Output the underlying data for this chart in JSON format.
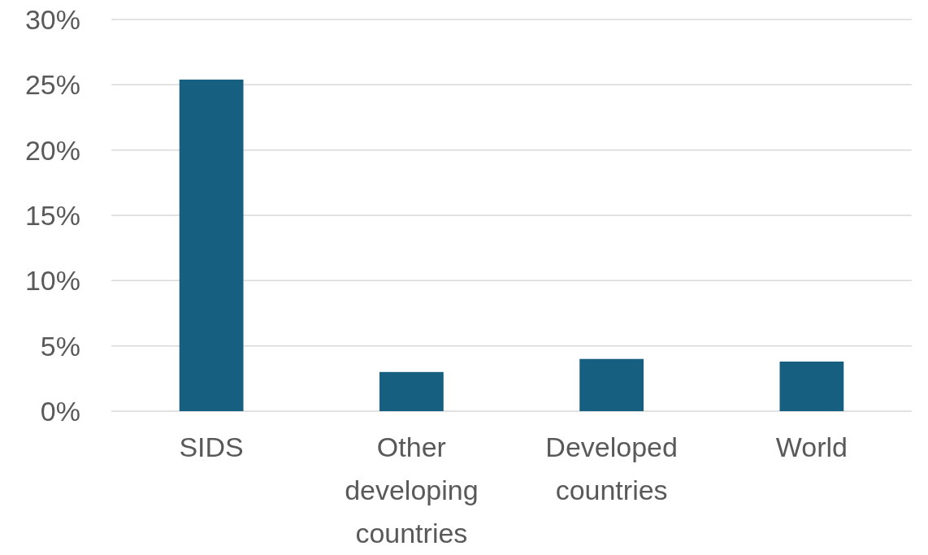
{
  "chart_data": {
    "type": "bar",
    "categories": [
      "SIDS",
      "Other developing countries",
      "Developed countries",
      "World"
    ],
    "values": [
      25.4,
      3.0,
      4.0,
      3.8
    ],
    "color": "#175f80",
    "ylim": [
      0,
      30
    ],
    "yticks": [
      {
        "value": 0,
        "label": "0%"
      },
      {
        "value": 5,
        "label": "5%"
      },
      {
        "value": 10,
        "label": "10%"
      },
      {
        "value": 15,
        "label": "15%"
      },
      {
        "value": 20,
        "label": "20%"
      },
      {
        "value": 25,
        "label": "25%"
      },
      {
        "value": 30,
        "label": "30%"
      }
    ],
    "grid": "y"
  }
}
